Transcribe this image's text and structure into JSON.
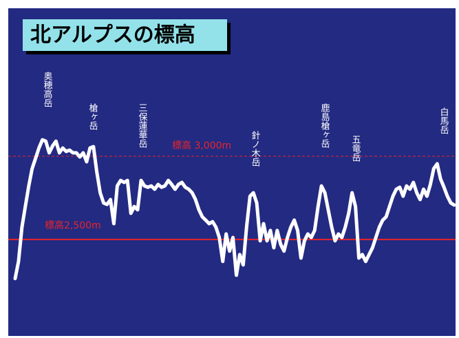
{
  "chart_data": {
    "type": "line",
    "title": "北アルプスの標高",
    "color": "#ffffff",
    "ylim": [
      1920,
      3890
    ],
    "values": [
      2265,
      2368,
      2574,
      2698,
      2822,
      2926,
      2988,
      3050,
      3099,
      3091,
      3021,
      3062,
      3091,
      3021,
      3050,
      3029,
      3037,
      3021,
      3021,
      2996,
      3021,
      2967,
      3050,
      3058,
      2905,
      2781,
      2719,
      2711,
      2740,
      2595,
      2822,
      2855,
      2843,
      2855,
      2657,
      2698,
      2678,
      2855,
      2822,
      2814,
      2822,
      2802,
      2831,
      2814,
      2822,
      2855,
      2831,
      2802,
      2831,
      2843,
      2814,
      2802,
      2781,
      2740,
      2678,
      2636,
      2616,
      2595,
      2607,
      2574,
      2512,
      2368,
      2533,
      2430,
      2512,
      2285,
      2409,
      2347,
      2574,
      2760,
      2781,
      2719,
      2492,
      2595,
      2492,
      2554,
      2450,
      2554,
      2471,
      2430,
      2512,
      2574,
      2616,
      2554,
      2388,
      2492,
      2533,
      2512,
      2554,
      2698,
      2822,
      2781,
      2678,
      2574,
      2492,
      2533,
      2512,
      2574,
      2657,
      2781,
      2698,
      2388,
      2409,
      2368,
      2409,
      2450,
      2512,
      2574,
      2616,
      2636,
      2698,
      2760,
      2802,
      2814,
      2760,
      2822,
      2802,
      2843,
      2781,
      2740,
      2802,
      2760,
      2831,
      2926,
      2955,
      2864,
      2814,
      2760,
      2719,
      2707
    ],
    "reference_lines": [
      {
        "label": "標高 3,000m",
        "value": 3000,
        "color": "#e8242a",
        "style": "dashed"
      },
      {
        "label": "標高2,500m",
        "value": 2500,
        "color": "#e8242a",
        "style": "solid"
      }
    ],
    "annotations": [
      "奥穂高岳",
      "槍ヶ岳",
      "三保蓮華岳",
      "針ノ木岳",
      "鹿島槍ヶ岳",
      "五竜岳",
      "白馬岳"
    ]
  }
}
